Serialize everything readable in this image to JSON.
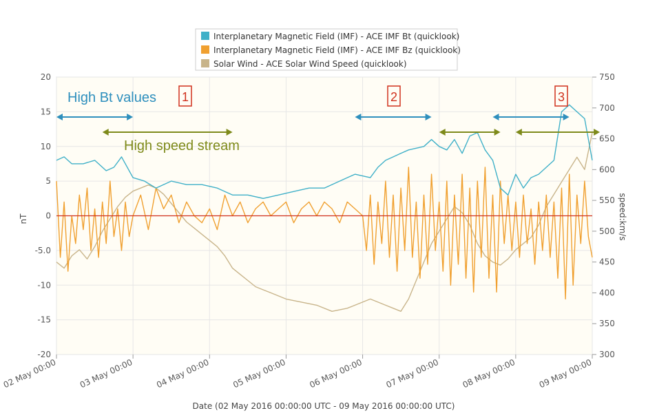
{
  "chart_data": {
    "type": "line",
    "legend": [
      {
        "name": "Interplanetary Magnetic Field (IMF) - ACE IMF Bt (quicklook)",
        "color": "#3fb0c8"
      },
      {
        "name": "Interplanetary Magnetic Field (IMF) - ACE IMF Bz (quicklook)",
        "color": "#f0a030"
      },
      {
        "name": "Solar Wind - ACE Solar Wind Speed (quicklook)",
        "color": "#c8b48a"
      }
    ],
    "legend_position": "top-center",
    "xlabel": "Date (02 May 2016 00:00:00 UTC - 09 May 2016 00:00:00 UTC)",
    "x_ticks": [
      "02 May 00:00",
      "03 May 00:00",
      "04 May 00:00",
      "05 May 00:00",
      "06 May 00:00",
      "07 May 00:00",
      "08 May 00:00",
      "09 May 00:00"
    ],
    "ylabel_left": "nT",
    "ylim_left": [
      -20,
      20
    ],
    "y_ticks_left": [
      "20",
      "15",
      "10",
      "5",
      "0",
      "-5.0",
      "-10",
      "-15",
      "-20"
    ],
    "ylabel_right": "speed:km/s",
    "ylim_right": [
      300,
      750
    ],
    "y_ticks_right": [
      "750",
      "700",
      "650",
      "600",
      "550",
      "500",
      "450",
      "400",
      "350",
      "300"
    ],
    "zero_line_color": "#d0301c",
    "grid": true,
    "series": [
      {
        "name": "Interplanetary Magnetic Field (IMF) - ACE IMF Bt (quicklook)",
        "axis": "left",
        "color": "#3fb0c8",
        "x_days": [
          0,
          0.1,
          0.2,
          0.35,
          0.5,
          0.65,
          0.75,
          0.85,
          1.0,
          1.15,
          1.3,
          1.5,
          1.7,
          1.9,
          2.1,
          2.3,
          2.5,
          2.7,
          2.9,
          3.1,
          3.3,
          3.5,
          3.7,
          3.9,
          4.1,
          4.2,
          4.3,
          4.4,
          4.5,
          4.6,
          4.8,
          4.9,
          5.0,
          5.1,
          5.2,
          5.3,
          5.4,
          5.5,
          5.6,
          5.7,
          5.8,
          5.9,
          6.0,
          6.1,
          6.2,
          6.3,
          6.4,
          6.5,
          6.6,
          6.7,
          6.8,
          6.9,
          7.0
        ],
        "values": [
          8,
          8.5,
          7.5,
          7.5,
          8,
          6.5,
          7,
          8.5,
          5.5,
          5,
          4,
          5,
          4.5,
          4.5,
          4,
          3,
          3,
          2.5,
          3,
          3.5,
          4,
          4,
          5,
          6,
          5.5,
          7,
          8,
          8.5,
          9,
          9.5,
          10,
          11,
          10,
          9.5,
          11,
          9,
          11.5,
          12,
          9.5,
          8,
          4,
          3,
          6,
          4,
          5.5,
          6,
          7,
          8,
          15,
          16,
          15,
          14,
          8
        ]
      },
      {
        "name": "Interplanetary Magnetic Field (IMF) - ACE IMF Bz (quicklook)",
        "axis": "left",
        "color": "#f0a030",
        "x_days": [
          0,
          0.05,
          0.1,
          0.15,
          0.2,
          0.25,
          0.3,
          0.35,
          0.4,
          0.45,
          0.5,
          0.55,
          0.6,
          0.65,
          0.7,
          0.75,
          0.8,
          0.85,
          0.9,
          0.95,
          1.0,
          1.1,
          1.2,
          1.3,
          1.4,
          1.5,
          1.6,
          1.7,
          1.8,
          1.9,
          2.0,
          2.1,
          2.2,
          2.3,
          2.4,
          2.5,
          2.6,
          2.7,
          2.8,
          2.9,
          3.0,
          3.1,
          3.2,
          3.3,
          3.4,
          3.5,
          3.6,
          3.7,
          3.8,
          3.9,
          4.0,
          4.05,
          4.1,
          4.15,
          4.2,
          4.25,
          4.3,
          4.35,
          4.4,
          4.45,
          4.5,
          4.55,
          4.6,
          4.65,
          4.7,
          4.75,
          4.8,
          4.85,
          4.9,
          4.95,
          5.0,
          5.05,
          5.1,
          5.15,
          5.2,
          5.25,
          5.3,
          5.35,
          5.4,
          5.45,
          5.5,
          5.55,
          5.6,
          5.65,
          5.7,
          5.75,
          5.8,
          5.85,
          5.9,
          5.95,
          6.0,
          6.05,
          6.1,
          6.15,
          6.2,
          6.25,
          6.3,
          6.35,
          6.4,
          6.45,
          6.5,
          6.55,
          6.6,
          6.65,
          6.7,
          6.75,
          6.8,
          6.85,
          6.9,
          6.95,
          7.0
        ],
        "values": [
          5,
          -6,
          2,
          -8,
          0,
          -4,
          3,
          -2,
          4,
          -5,
          1,
          -6,
          2,
          -4,
          5,
          -3,
          1,
          -5,
          2,
          -3,
          0,
          3,
          -2,
          4,
          1,
          3,
          -1,
          2,
          0,
          -1,
          1,
          -2,
          3,
          0,
          2,
          -1,
          1,
          2,
          0,
          1,
          2,
          -1,
          1,
          2,
          0,
          2,
          1,
          -1,
          2,
          1,
          0,
          -5,
          3,
          -7,
          2,
          -4,
          5,
          -6,
          3,
          -8,
          4,
          -5,
          7,
          -6,
          2,
          -9,
          3,
          -7,
          6,
          -5,
          2,
          -8,
          5,
          -10,
          3,
          -7,
          6,
          -9,
          4,
          -11,
          5,
          -6,
          7,
          -9,
          3,
          -11,
          5,
          -4,
          3,
          -5,
          2,
          -6,
          3,
          -4,
          1,
          -7,
          2,
          -5,
          3,
          -6,
          2,
          -9,
          4,
          -12,
          6,
          -10,
          3,
          -4,
          5,
          -3,
          -6
        ]
      },
      {
        "name": "Solar Wind - ACE Solar Wind Speed (quicklook)",
        "axis": "right",
        "color": "#c8b48a",
        "x_days": [
          0,
          0.1,
          0.2,
          0.3,
          0.4,
          0.5,
          0.6,
          0.7,
          0.8,
          0.9,
          1.0,
          1.1,
          1.2,
          1.3,
          1.4,
          1.5,
          1.6,
          1.7,
          1.8,
          1.9,
          2.0,
          2.1,
          2.2,
          2.3,
          2.4,
          2.5,
          2.6,
          2.7,
          2.8,
          2.9,
          3.0,
          3.2,
          3.4,
          3.6,
          3.8,
          4.0,
          4.1,
          4.2,
          4.3,
          4.4,
          4.5,
          4.6,
          4.7,
          4.8,
          4.9,
          5.0,
          5.1,
          5.2,
          5.3,
          5.4,
          5.5,
          5.6,
          5.7,
          5.8,
          5.9,
          6.0,
          6.1,
          6.2,
          6.3,
          6.4,
          6.5,
          6.6,
          6.7,
          6.8,
          6.9,
          7.0
        ],
        "values": [
          450,
          440,
          460,
          470,
          455,
          475,
          500,
          520,
          540,
          555,
          565,
          570,
          575,
          570,
          560,
          545,
          530,
          515,
          505,
          495,
          485,
          475,
          460,
          440,
          430,
          420,
          410,
          405,
          400,
          395,
          390,
          385,
          380,
          370,
          375,
          385,
          390,
          385,
          380,
          375,
          370,
          390,
          420,
          450,
          480,
          500,
          520,
          540,
          530,
          510,
          480,
          460,
          450,
          445,
          455,
          470,
          480,
          490,
          510,
          540,
          560,
          580,
          600,
          620,
          600,
          660
        ]
      }
    ],
    "annotations": {
      "high_bt_label": "High Bt values",
      "high_bt_color": "#2e8fbd",
      "high_speed_label": "High speed stream",
      "high_speed_color": "#7e8a1a",
      "numbers": [
        "1",
        "2",
        "3"
      ],
      "number_color": "#d0301c",
      "bt_arrows": [
        [
          0.0,
          1.0
        ],
        [
          3.9,
          4.9
        ],
        [
          5.7,
          6.7
        ]
      ],
      "speed_arrows": [
        [
          0.6,
          2.3
        ],
        [
          5.0,
          5.8
        ],
        [
          6.0,
          7.1
        ]
      ]
    }
  }
}
